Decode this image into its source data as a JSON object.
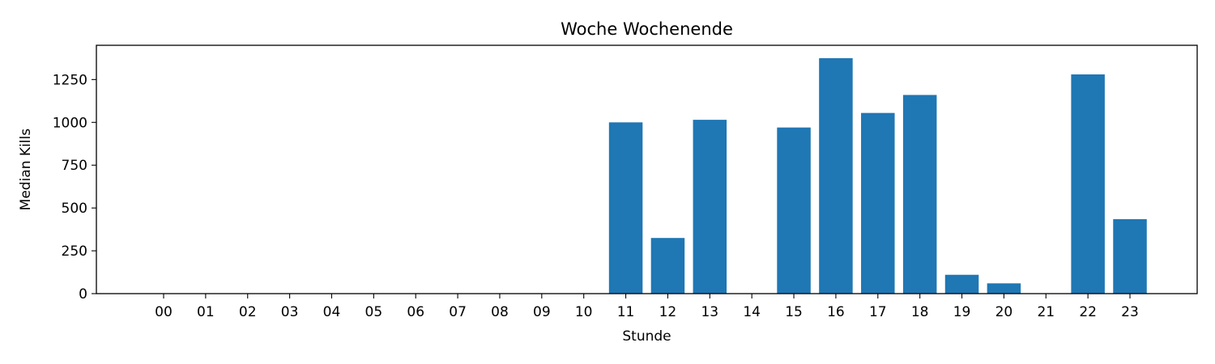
{
  "chart_data": {
    "type": "bar",
    "title": "Woche Wochenende",
    "xlabel": "Stunde",
    "ylabel": "Median Kills",
    "categories": [
      "00",
      "01",
      "02",
      "03",
      "04",
      "05",
      "06",
      "07",
      "08",
      "09",
      "10",
      "11",
      "12",
      "13",
      "14",
      "15",
      "16",
      "17",
      "18",
      "19",
      "20",
      "21",
      "22",
      "23"
    ],
    "values": [
      0,
      0,
      0,
      0,
      0,
      0,
      0,
      0,
      0,
      0,
      0,
      1000,
      325,
      1015,
      0,
      970,
      1375,
      1055,
      1160,
      110,
      60,
      0,
      1280,
      435
    ],
    "ylim": [
      0,
      1450
    ],
    "yticks": [
      0,
      250,
      500,
      750,
      1000,
      1250
    ],
    "grid": false,
    "bar_color": "#1f77b4"
  }
}
